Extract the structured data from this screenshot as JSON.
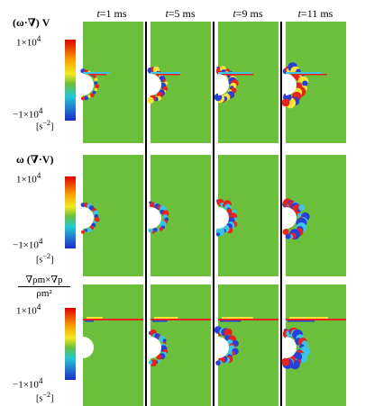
{
  "columns": [
    {
      "prefix": "t",
      "rest": "=1 ms"
    },
    {
      "prefix": "t",
      "rest": "=5 ms"
    },
    {
      "prefix": "t",
      "rest": "=9 ms"
    },
    {
      "prefix": "t",
      "rest": "=11 ms"
    }
  ],
  "rows": [
    {
      "title": "(ω·∇) V",
      "max_label": "1×10",
      "max_exp": "4",
      "min_label": "−1×10",
      "min_exp": "4",
      "unit": "[s",
      "unit_exp": "−2",
      "unit_close": "]"
    },
    {
      "title": "ω (∇·V)",
      "max_label": "1×10",
      "max_exp": "4",
      "min_label": "−1×10",
      "min_exp": "4",
      "unit": "[s",
      "unit_exp": "−2",
      "unit_close": "]"
    },
    {
      "title_num": "∇ρm×∇p",
      "title_den": "ρm²",
      "max_label": "1×10",
      "max_exp": "4",
      "min_label": "−1×10",
      "min_exp": "4",
      "unit": "[s",
      "unit_exp": "−2",
      "unit_close": "]"
    }
  ],
  "colors": {
    "field": "#6bbf3a",
    "red": "#e8221c",
    "blue": "#2a3fd6",
    "yellow": "#f6e43a",
    "cyan": "#3bc4e8",
    "separator": "#000000"
  }
}
